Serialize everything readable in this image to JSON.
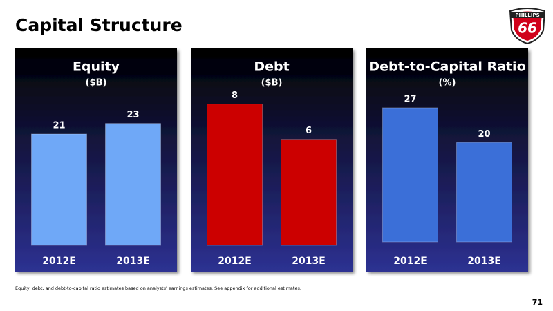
{
  "title": "Capital Structure",
  "footnote": "Equity, debt, and debt-to-capital ratio estimates based on analysts' earnings estimates.  See appendix for additional estimates.",
  "page_number": "71",
  "logo": {
    "name": "PHILLIPS",
    "number": "66"
  },
  "chart_data": [
    {
      "type": "bar",
      "title": "Equity",
      "subtitle": "($B)",
      "categories": [
        "2012E",
        "2013E"
      ],
      "values": [
        21,
        23
      ],
      "color": "#6fa8f7",
      "ylim": [
        0,
        30
      ]
    },
    {
      "type": "bar",
      "title": "Debt",
      "subtitle": "($B)",
      "categories": [
        "2012E",
        "2013E"
      ],
      "values": [
        8,
        6
      ],
      "color": "#cc0000",
      "ylim": [
        0,
        9
      ]
    },
    {
      "type": "bar",
      "title": "Debt-to-Capital Ratio",
      "subtitle": "(%)",
      "categories": [
        "2012E",
        "2013E"
      ],
      "values": [
        27,
        20
      ],
      "color": "#3b6fd8",
      "ylim": [
        0,
        32
      ]
    }
  ]
}
